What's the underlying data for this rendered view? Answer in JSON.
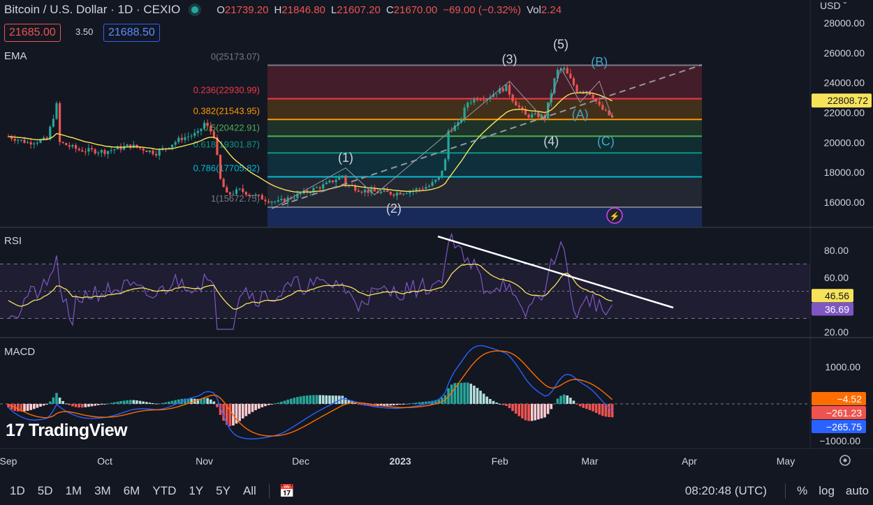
{
  "header": {
    "title": "Bitcoin / U.S. Dollar · 1D · CEXIO",
    "ohlc": [
      {
        "k": "O",
        "v": "21739.20"
      },
      {
        "k": "H",
        "v": "21846.80"
      },
      {
        "k": "L",
        "v": "21607.20"
      },
      {
        "k": "C",
        "v": "21670.00"
      }
    ],
    "change": "−69.00 (−0.32%)",
    "vol_label": "Vol",
    "vol_value": "2.24",
    "sell_price": "21685.00",
    "spread": "3.50",
    "buy_price": "21688.50"
  },
  "panes": {
    "ema": "EMA",
    "rsi": "RSI",
    "macd": "MACD"
  },
  "currency": "USD",
  "chevron_icon": "chevron-down-icon",
  "price_axis": {
    "ticks": [
      {
        "label": "28000.00",
        "value": 28000
      },
      {
        "label": "26000.00",
        "value": 26000
      },
      {
        "label": "24000.00",
        "value": 24000
      },
      {
        "label": "22000.00",
        "value": 22000
      },
      {
        "label": "20000.00",
        "value": 20000
      },
      {
        "label": "18000.00",
        "value": 18000
      },
      {
        "label": "16000.00",
        "value": 16000
      }
    ],
    "current_price": "22808.72",
    "current_value": 22808.72
  },
  "rsi_axis": {
    "ticks": [
      {
        "label": "80.00",
        "value": 80
      },
      {
        "label": "60.00",
        "value": 60
      },
      {
        "label": "20.00",
        "value": 20
      }
    ],
    "badges": [
      {
        "label": "46.56",
        "value": 46.56,
        "color": "#f7e35a",
        "text": "#131722"
      },
      {
        "label": "36.69",
        "value": 36.69,
        "color": "#7e57c2",
        "text": "#ffffff"
      }
    ]
  },
  "macd_axis": {
    "ticks": [
      {
        "label": "1000.00",
        "value": 1000
      },
      {
        "label": "−1000.00",
        "value": -1000
      }
    ],
    "badges": [
      {
        "label": "−4.52",
        "value": -4.52,
        "color": "#ff6d00",
        "text": "#ffffff"
      },
      {
        "label": "−261.23",
        "value": -261.23,
        "color": "#ef5350",
        "text": "#ffffff"
      },
      {
        "label": "−265.75",
        "value": -265.75,
        "color": "#2962ff",
        "text": "#ffffff"
      }
    ]
  },
  "time_axis": [
    {
      "label": "Sep",
      "day": -14
    },
    {
      "label": "Oct",
      "day": 16
    },
    {
      "label": "Nov",
      "day": 47
    },
    {
      "label": "Dec",
      "day": 77
    },
    {
      "label": "2023",
      "day": 108
    },
    {
      "label": "Feb",
      "day": 139
    },
    {
      "label": "Mar",
      "day": 167
    },
    {
      "label": "Apr",
      "day": 198
    },
    {
      "label": "May",
      "day": 228
    }
  ],
  "fib_levels": [
    {
      "label": "0(25173.07)",
      "price": 25173.07,
      "color": "#787b86"
    },
    {
      "label": "0.236(22930.99)",
      "price": 22930.99,
      "color": "#f23645"
    },
    {
      "label": "0.382(21543.95)",
      "price": 21543.95,
      "color": "#ff9800"
    },
    {
      "label": "0.5(20422.91)",
      "price": 20422.91,
      "color": "#4caf50"
    },
    {
      "label": "0.618(19301.87)",
      "price": 19301.87,
      "color": "#089981"
    },
    {
      "label": "0.786(17705.82)",
      "price": 17705.82,
      "color": "#00bcd4"
    },
    {
      "label": "1(15672.75)",
      "price": 15672.75,
      "color": "#787b86"
    }
  ],
  "waves": [
    {
      "label": "(1)",
      "day": 91,
      "price": 18700,
      "color": "#d1d4dc"
    },
    {
      "label": "(2)",
      "day": 106,
      "price": 15300,
      "color": "#d1d4dc"
    },
    {
      "label": "(3)",
      "day": 142,
      "price": 25300,
      "color": "#d1d4dc"
    },
    {
      "label": "(4)",
      "day": 155,
      "price": 19800,
      "color": "#d1d4dc"
    },
    {
      "label": "(5)",
      "day": 158,
      "price": 26300,
      "color": "#d1d4dc"
    },
    {
      "label": "(A)",
      "day": 164,
      "price": 21600,
      "color": "#42a5c8"
    },
    {
      "label": "(B)",
      "day": 170,
      "price": 25100,
      "color": "#42a5c8"
    },
    {
      "label": "(C)",
      "day": 172,
      "price": 19800,
      "color": "#42a5c8"
    }
  ],
  "toolbar": {
    "ranges": [
      "1D",
      "5D",
      "1M",
      "3M",
      "6M",
      "YTD",
      "1Y",
      "5Y",
      "All"
    ],
    "compare_icon": "calendar-range-icon",
    "time": "08:20:48 (UTC)",
    "percent": "%",
    "log": "log",
    "auto": "auto",
    "settings_icon": "gear-icon"
  },
  "logo_text": "TradingView",
  "logo_mark": "17",
  "lightning_icon": "lightning-icon",
  "colors": {
    "up": "#26a69a",
    "down": "#ef5350",
    "ema": "#f7e35a",
    "rsi": "#7e57c2",
    "macd": "#2962ff",
    "signal": "#ff6d00"
  }
}
